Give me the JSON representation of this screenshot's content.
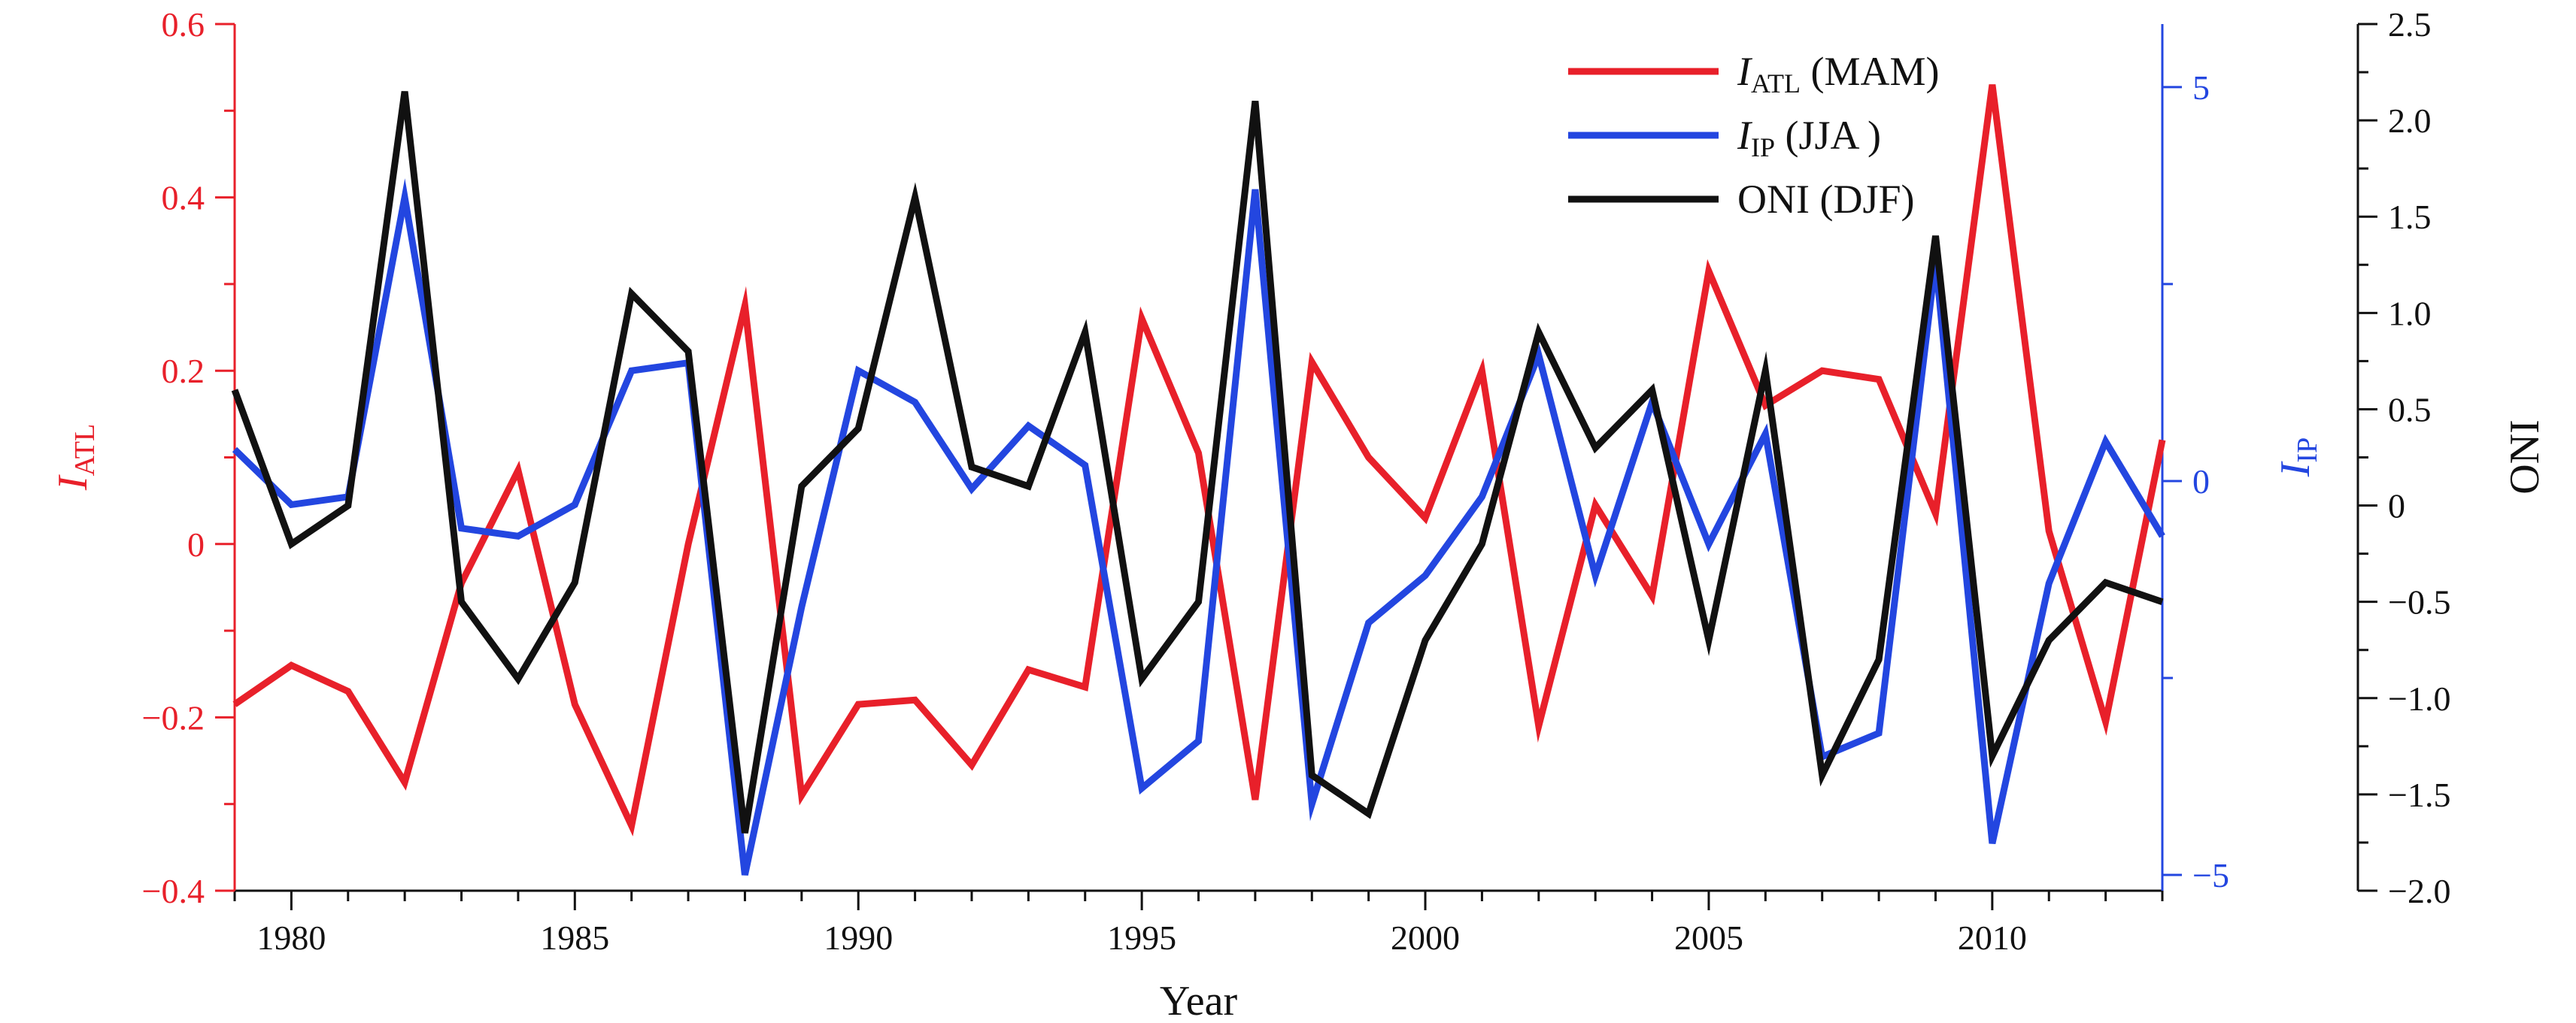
{
  "chart_data": {
    "type": "line",
    "xlabel": "Year",
    "xlim": [
      1979,
      2013
    ],
    "x_ticks": [
      1980,
      1985,
      1990,
      1995,
      2000,
      2005,
      2010
    ],
    "x_minor_step": 1,
    "grid": false,
    "legend_position": "top-right",
    "axes": [
      {
        "id": "atl",
        "side": "left",
        "label_main": "I",
        "label_sub": "ATL",
        "color": "#e8202a",
        "lim": [
          -0.4,
          0.6
        ],
        "ticks": [
          -0.4,
          -0.2,
          0,
          0.2,
          0.4,
          0.6
        ],
        "tick_labels": [
          "−0.4",
          "−0.2",
          "0",
          "0.2",
          "0.4",
          "0.6"
        ]
      },
      {
        "id": "ip",
        "side": "right-inner",
        "label_main": "I",
        "label_sub": "IP",
        "color": "#2346e0",
        "lim": [
          -5.2,
          5.8
        ],
        "ticks": [
          -5,
          0,
          5
        ],
        "tick_labels": [
          "−5",
          "0",
          "5"
        ],
        "minor_ticks": [
          -2.5,
          2.5
        ]
      },
      {
        "id": "oni",
        "side": "right-outer",
        "label_main": "ONI",
        "label_sub": "",
        "color": "#111111",
        "lim": [
          -2.0,
          2.5
        ],
        "ticks": [
          -2.0,
          -1.5,
          -1.0,
          -0.5,
          0,
          0.5,
          1.0,
          1.5,
          2.0,
          2.5
        ],
        "tick_labels": [
          "−2.0",
          "−1.5",
          "−1.0",
          "−0.5",
          "0",
          "0.5",
          "1.0",
          "1.5",
          "2.0",
          "2.5"
        ]
      }
    ],
    "x": [
      1979,
      1980,
      1981,
      1982,
      1983,
      1984,
      1985,
      1986,
      1987,
      1988,
      1989,
      1990,
      1991,
      1992,
      1993,
      1994,
      1995,
      1996,
      1997,
      1998,
      1999,
      2000,
      2001,
      2002,
      2003,
      2004,
      2005,
      2006,
      2007,
      2008,
      2009,
      2010,
      2011,
      2012,
      2013
    ],
    "series": [
      {
        "legend_main": "I",
        "legend_sub": "ATL",
        "legend_suffix": " (MAM)",
        "axis": "atl",
        "color": "#e8202a",
        "values": [
          -0.185,
          -0.14,
          -0.17,
          -0.275,
          -0.045,
          0.085,
          -0.185,
          -0.325,
          0.0,
          0.275,
          -0.29,
          -0.185,
          -0.18,
          -0.255,
          -0.145,
          -0.165,
          0.26,
          0.105,
          -0.295,
          0.21,
          0.1,
          0.03,
          0.2,
          -0.21,
          0.045,
          -0.06,
          0.315,
          0.16,
          0.2,
          0.19,
          0.035,
          0.53,
          0.015,
          -0.205,
          0.12
        ]
      },
      {
        "legend_main": "I",
        "legend_sub": "IP",
        "legend_suffix": " (JJA )",
        "axis": "ip",
        "color": "#2346e0",
        "values": [
          0.4,
          -0.3,
          -0.2,
          3.6,
          -0.6,
          -0.7,
          -0.3,
          1.4,
          1.5,
          -5.0,
          -1.6,
          1.4,
          1.0,
          -0.1,
          0.7,
          0.2,
          -3.9,
          -3.3,
          3.7,
          -4.1,
          -1.8,
          -1.2,
          -0.2,
          1.6,
          -1.2,
          1.0,
          -0.8,
          0.6,
          -3.5,
          -3.2,
          2.8,
          -4.6,
          -1.3,
          0.5,
          -0.7
        ]
      },
      {
        "legend_main": "ONI",
        "legend_sub": "",
        "legend_suffix": " (DJF)",
        "axis": "oni",
        "color": "#111111",
        "values": [
          0.6,
          -0.2,
          0.0,
          2.15,
          -0.5,
          -0.9,
          -0.4,
          1.1,
          0.8,
          -1.7,
          0.1,
          0.4,
          1.6,
          0.2,
          0.1,
          0.9,
          -0.9,
          -0.5,
          2.1,
          -1.4,
          -1.6,
          -0.7,
          -0.2,
          0.9,
          0.3,
          0.6,
          -0.7,
          0.7,
          -1.4,
          -0.8,
          1.4,
          -1.3,
          -0.7,
          -0.4,
          -0.5
        ]
      }
    ]
  }
}
